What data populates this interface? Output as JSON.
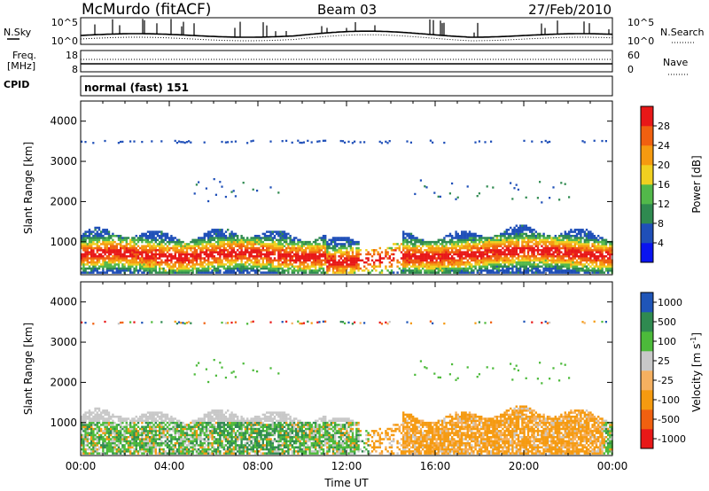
{
  "header": {
    "station": "McMurdo (fitACF)",
    "beam": "Beam 03",
    "date": "27/Feb/2010"
  },
  "noise_panel": {
    "left_label": "N.Sky",
    "right_label": "N.Search",
    "left_ticks": [
      "10^5",
      "10^0"
    ],
    "right_ticks": [
      "10^5",
      "10^0"
    ]
  },
  "freq_panel": {
    "left_label_1": "Freq.",
    "left_label_2": "[MHz]",
    "right_label": "Nave",
    "left_ticks": [
      "18",
      "8"
    ],
    "right_ticks": [
      "60",
      "0"
    ]
  },
  "cpid": {
    "label": "CPID",
    "value": "normal (fast) 151"
  },
  "colors": {
    "power_scale": [
      "#0a14f0",
      "#1f4fb8",
      "#2f8a50",
      "#52b84a",
      "#f0d020",
      "#f59a10",
      "#f06010",
      "#e81818"
    ],
    "velocity_scale": [
      "#e81818",
      "#f06010",
      "#f59a10",
      "#f5b060",
      "#c8c8c8",
      "#4cba3a",
      "#2f8a50",
      "#1f55b8"
    ]
  },
  "chart_data": [
    {
      "type": "heatmap",
      "name": "power",
      "xlabel": "",
      "ylabel": "Slant Range [km]",
      "xlim": [
        0,
        24
      ],
      "ylim": [
        180,
        4500
      ],
      "yticks": [
        "1000",
        "2000",
        "3000",
        "4000"
      ],
      "colorbar": {
        "label": "Power [dB]",
        "ticks": [
          "4",
          "8",
          "12",
          "16",
          "20",
          "24",
          "28"
        ],
        "range": [
          0,
          32
        ]
      }
    },
    {
      "type": "heatmap",
      "name": "velocity",
      "xlabel": "Time UT",
      "ylabel": "Slant Range [km]",
      "xlim": [
        0,
        24
      ],
      "ylim": [
        180,
        4500
      ],
      "yticks": [
        "1000",
        "2000",
        "3000",
        "4000"
      ],
      "xticks": [
        "00:00",
        "04:00",
        "08:00",
        "12:00",
        "16:00",
        "20:00",
        "00:00"
      ],
      "colorbar": {
        "label": "Velocity [m s",
        "label_sup": "-1",
        "label_close": "]",
        "ticks": [
          "1000",
          "500",
          "100",
          "25",
          "-25",
          "-100",
          "-500",
          "-1000"
        ]
      }
    }
  ]
}
